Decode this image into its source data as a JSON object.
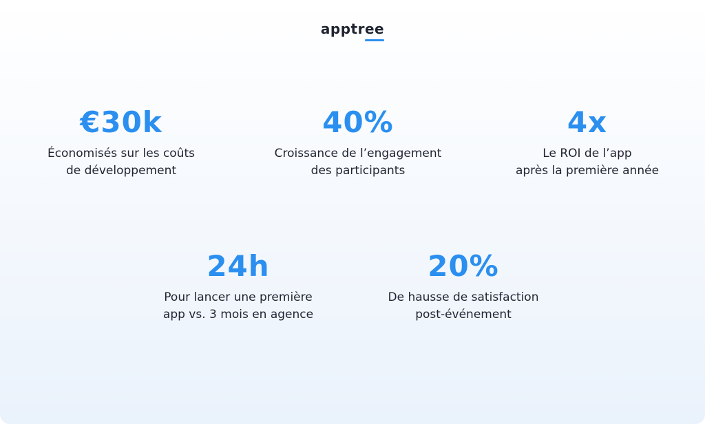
{
  "logo": {
    "text": "apptree",
    "accent_color": "#2b8ff0"
  },
  "colors": {
    "value": "#2b8ff0",
    "text": "#1f2430"
  },
  "stats": [
    {
      "value": "€30k",
      "line1": "Économisés sur les coûts",
      "line2": "de développement"
    },
    {
      "value": "40%",
      "line1": "Croissance de l’engagement",
      "line2": "des participants"
    },
    {
      "value": "4x",
      "line1": "Le ROI de l’app",
      "line2": "après la première année"
    },
    {
      "value": "24h",
      "line1": "Pour lancer une première",
      "line2": "app vs. 3 mois en agence"
    },
    {
      "value": "20%",
      "line1": "De hausse de satisfaction",
      "line2": "post-événement"
    }
  ]
}
